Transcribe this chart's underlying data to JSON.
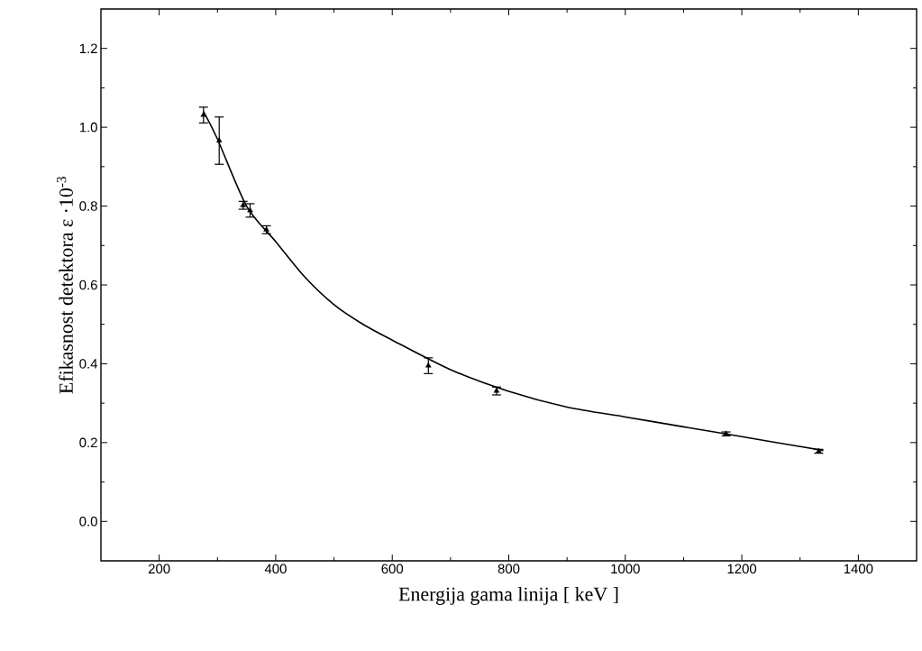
{
  "chart_data": {
    "type": "scatter",
    "xlabel": "Energija gama linija   [ keV ]",
    "ylabel": "Efikasnost detektora ε ·10$^{-3}$",
    "xlim": [
      100,
      1500
    ],
    "ylim": [
      -0.1,
      1.3
    ],
    "xticks": [
      200,
      400,
      600,
      800,
      1000,
      1200,
      1400
    ],
    "yticks": [
      {
        "value": 0,
        "label": "0.0"
      },
      0.2,
      0.4,
      0.6,
      0.8,
      {
        "value": 1,
        "label": "1.0"
      },
      1.2
    ],
    "series": [
      {
        "color": "#000000",
        "marker": "triangle",
        "x": [
          276,
          303,
          344,
          356,
          384,
          662,
          779,
          1173,
          1332
        ],
        "values": [
          1.031,
          0.966,
          0.802,
          0.789,
          0.74,
          0.395,
          0.331,
          0.222,
          0.178
        ],
        "errors": [
          0.02,
          0.06,
          0.01,
          0.017,
          0.01,
          0.02,
          0.01,
          0.005,
          0.005
        ]
      },
      {
        "type": "line",
        "color": "#000000",
        "marker": "none",
        "x": [
          276,
          300,
          350,
          400,
          450,
          500,
          550,
          600,
          700,
          800,
          900,
          1000,
          1100,
          1200,
          1300,
          1340
        ],
        "values": [
          1.04,
          0.97,
          0.8,
          0.71,
          0.62,
          0.55,
          0.5,
          0.46,
          0.385,
          0.33,
          0.29,
          0.265,
          0.24,
          0.215,
          0.19,
          0.18
        ]
      }
    ]
  }
}
